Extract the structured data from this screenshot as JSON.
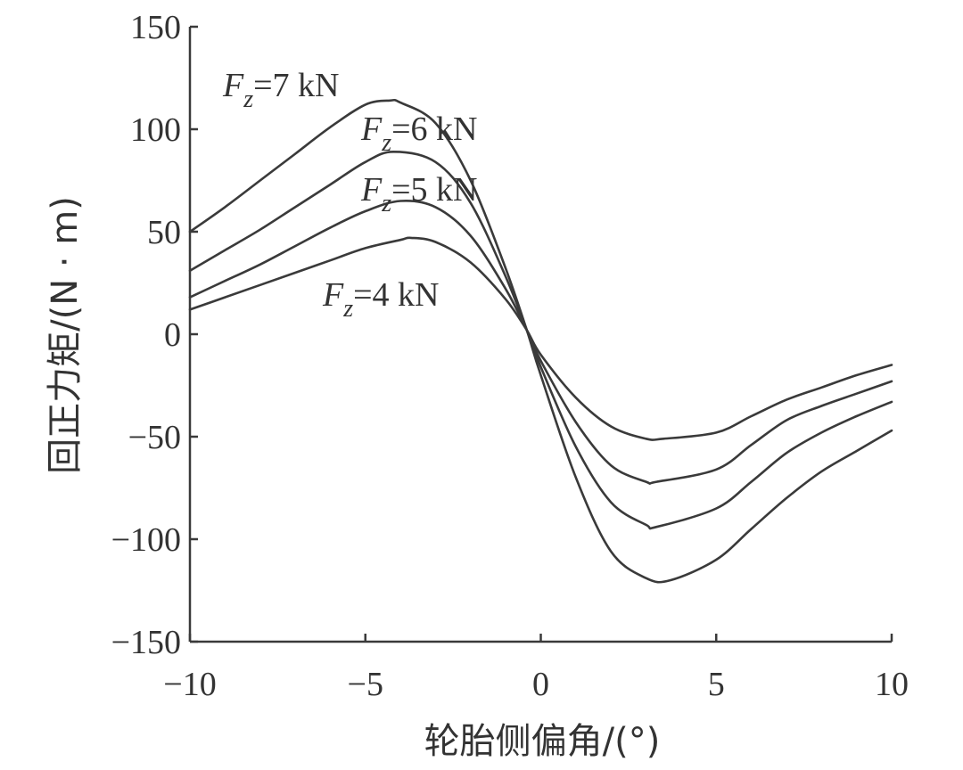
{
  "chart_data": {
    "type": "line",
    "title": "",
    "xlabel": "轮胎侧偏角/(°)",
    "ylabel": "回正力矩/(N · m)",
    "xlim": [
      -10,
      10
    ],
    "ylim": [
      -150,
      150
    ],
    "xticks": [
      "−10",
      "−5",
      "0",
      "5",
      "10"
    ],
    "yticks": [
      "150",
      "100",
      "50",
      "0",
      "−50",
      "−100",
      "−150"
    ],
    "grid": false,
    "series": [
      {
        "name": "Fz=7 kN",
        "label_parts": [
          "F",
          "z",
          "=7 kN"
        ],
        "x": [
          -10,
          -9,
          -8,
          -7,
          -6,
          -5,
          -4.3,
          -4,
          -3,
          -2,
          -1,
          -0.4,
          0,
          1,
          2,
          3,
          3.7,
          5,
          6,
          7,
          8,
          9,
          10
        ],
        "y": [
          50,
          62,
          75,
          88,
          101,
          112,
          114,
          113,
          103,
          75,
          32,
          2,
          -20,
          -70,
          -106,
          -119,
          -120,
          -110,
          -95,
          -80,
          -67,
          -57,
          -47
        ]
      },
      {
        "name": "Fz=6 kN",
        "label_parts": [
          "F",
          "z",
          "=6 kN"
        ],
        "x": [
          -10,
          -9,
          -8,
          -7,
          -6,
          -5,
          -4.2,
          -3,
          -2,
          -1,
          -0.4,
          0,
          1,
          2,
          3,
          3.3,
          5,
          6,
          7,
          8,
          9,
          10
        ],
        "y": [
          31,
          41,
          51,
          62,
          73,
          84,
          89,
          84,
          64,
          28,
          2,
          -16,
          -55,
          -82,
          -93,
          -94,
          -85,
          -72,
          -58,
          -48,
          -40,
          -33
        ]
      },
      {
        "name": "Fz=5 kN",
        "label_parts": [
          "F",
          "z",
          "=5 kN"
        ],
        "x": [
          -10,
          -9,
          -8,
          -7,
          -6,
          -5,
          -4,
          -3,
          -2,
          -1,
          -0.4,
          0,
          1,
          2,
          3,
          3.3,
          5,
          6,
          7,
          8,
          9,
          10
        ],
        "y": [
          18,
          26,
          34,
          43,
          52,
          60,
          65,
          62,
          48,
          22,
          2,
          -13,
          -43,
          -64,
          -72,
          -72,
          -66,
          -54,
          -42,
          -35,
          -29,
          -23
        ]
      },
      {
        "name": "Fz=4 kN",
        "label_parts": [
          "F",
          "z",
          "=4 kN"
        ],
        "x": [
          -10,
          -9,
          -8,
          -7,
          -6,
          -5,
          -4,
          -3.7,
          -3,
          -2,
          -1,
          -0.4,
          0,
          1,
          2,
          3,
          3.5,
          5,
          6,
          7,
          8,
          9,
          10
        ],
        "y": [
          12,
          18,
          24,
          30,
          36,
          42,
          46,
          47,
          45,
          35,
          17,
          2,
          -10,
          -31,
          -45,
          -51,
          -51,
          -48,
          -40,
          -32,
          -26,
          -20,
          -15
        ]
      }
    ],
    "line_color": "#3a3a3a"
  }
}
